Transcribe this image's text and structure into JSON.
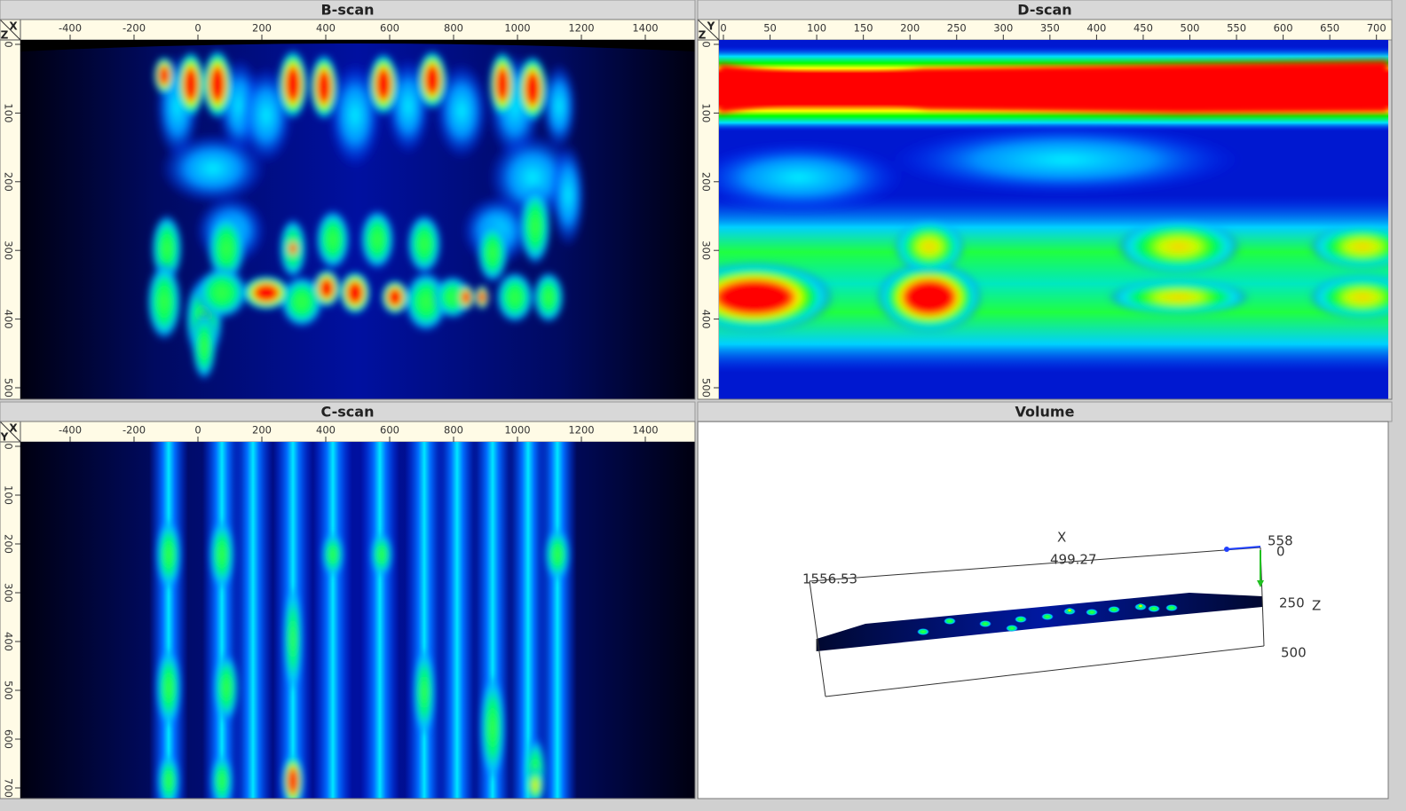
{
  "panels": [
    {
      "title": "B-scan",
      "corner": [
        "X",
        "Z"
      ],
      "x_ticks": [
        -400,
        -200,
        0,
        200,
        400,
        600,
        800,
        1000,
        1200,
        1400
      ],
      "y_ticks": [
        0,
        100,
        200,
        300,
        400,
        500
      ]
    },
    {
      "title": "D-scan",
      "corner": [
        "Y",
        "Z"
      ],
      "x_ticks": [
        0,
        50,
        100,
        150,
        200,
        250,
        300,
        350,
        400,
        450,
        500,
        550,
        600,
        650,
        700
      ],
      "y_ticks": [
        0,
        100,
        200,
        300,
        400,
        500
      ]
    },
    {
      "title": "C-scan",
      "corner": [
        "X",
        "Y"
      ],
      "x_ticks": [
        -400,
        -200,
        0,
        200,
        400,
        600,
        800,
        1000,
        1200,
        1400
      ],
      "y_ticks": [
        0,
        100,
        200,
        300,
        400,
        500,
        600,
        700
      ]
    },
    {
      "title": "Volume",
      "labels": {
        "x_axis": "X",
        "x_mid": "499.27",
        "x_end": "1556.53",
        "top": "558",
        "z_zero": "0",
        "z_mid": "250",
        "z_axis": "Z",
        "z_end": "500"
      }
    }
  ]
}
